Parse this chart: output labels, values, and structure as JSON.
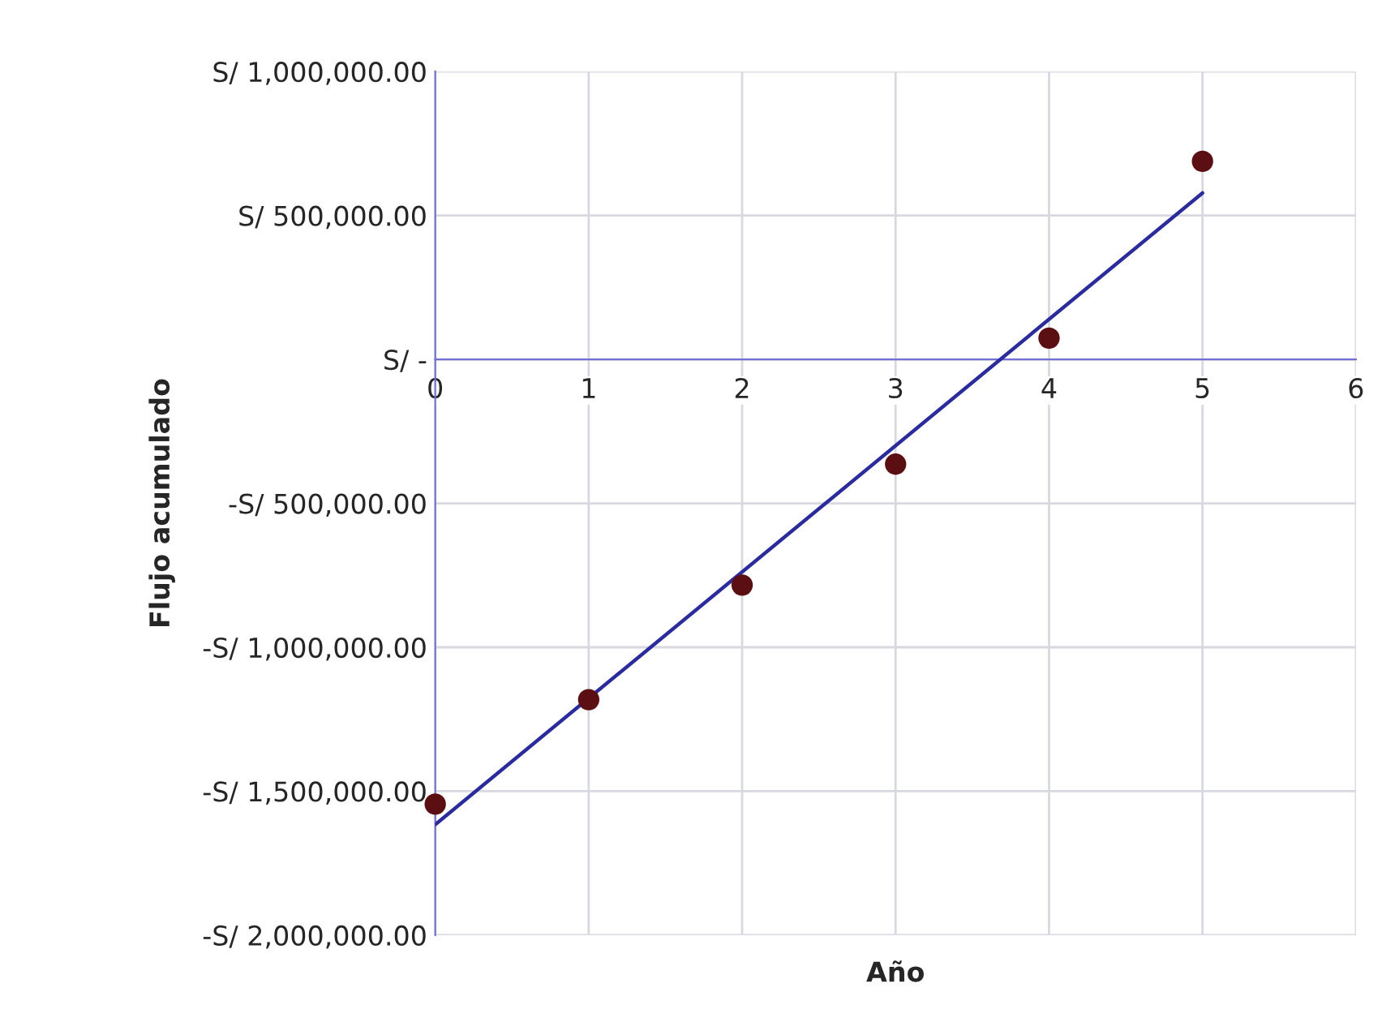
{
  "chart_data": {
    "type": "scatter",
    "xlabel": "Año",
    "ylabel": "Flujo acumulado",
    "x": [
      0,
      1,
      2,
      3,
      4,
      5
    ],
    "series": [
      {
        "color": "#5c0f12",
        "marker": "circle",
        "values": [
          -1545000,
          -1182000,
          -784000,
          -364000,
          74000,
          688000
        ]
      },
      {
        "type": "line",
        "color": "#2b2ba0",
        "marker": "none",
        "line_style": "solid",
        "x": [
          0,
          5
        ],
        "values": [
          -1616000,
          578000
        ]
      }
    ],
    "xlim": [
      0,
      6
    ],
    "xticks": [
      0,
      1,
      2,
      3,
      4,
      5,
      6
    ],
    "ylim": [
      -2000000,
      1000000
    ],
    "yticks": [
      {
        "value": 1000000,
        "label": "S/ 1,000,000.00"
      },
      {
        "value": 500000,
        "label": "S/ 500,000.00"
      },
      {
        "value": 0,
        "label": "S/ -"
      },
      {
        "value": -500000,
        "label": "-S/ 500,000.00"
      },
      {
        "value": -1000000,
        "label": "-S/ 1,000,000.00"
      },
      {
        "value": -1500000,
        "label": "-S/ 1,500,000.00"
      },
      {
        "value": -2000000,
        "label": "-S/ 2,000,000.00"
      }
    ],
    "grid": true,
    "legend": false
  }
}
